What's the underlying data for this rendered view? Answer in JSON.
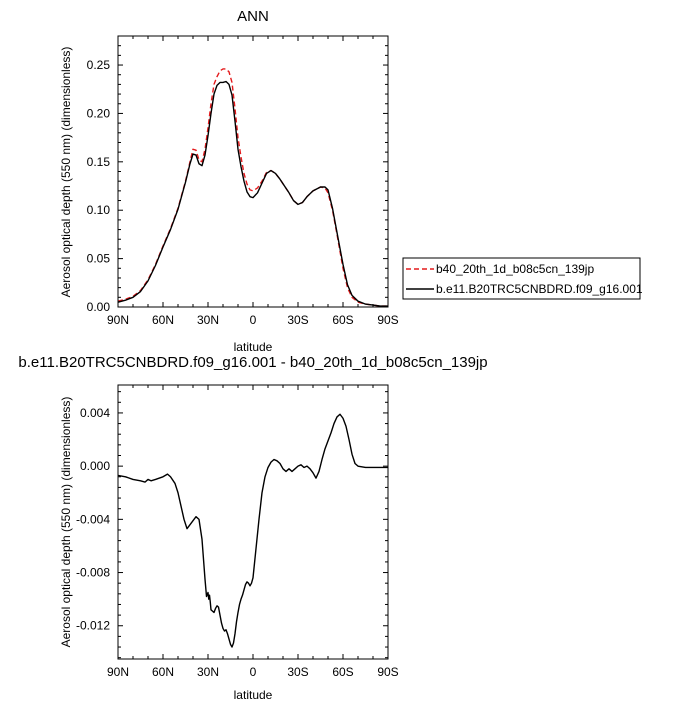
{
  "chart_data": [
    {
      "type": "line",
      "title": "ANN",
      "xlabel": "latitude",
      "ylabel": "Aerosol optical depth (550 nm) (dimensionless)",
      "xlim": [
        90,
        -90
      ],
      "ylim": [
        0,
        0.28
      ],
      "x_ticks": [
        90,
        60,
        30,
        0,
        -30,
        -60,
        -90
      ],
      "x_tick_labels": [
        "90N",
        "60N",
        "30N",
        "0",
        "30S",
        "60S",
        "90S"
      ],
      "y_ticks": [
        0,
        0.05,
        0.1,
        0.15,
        0.2,
        0.25
      ],
      "y_tick_labels": [
        "0.00",
        "0.05",
        "0.10",
        "0.15",
        "0.20",
        "0.25"
      ],
      "legend_position": "right",
      "series": [
        {
          "name": "b40_20th_1d_b08c5cn_139jp",
          "color": "#e41a1c",
          "style": "dashed",
          "x": [
            90,
            85,
            80,
            75,
            70,
            65,
            60,
            55,
            50,
            45,
            42,
            40,
            38,
            36,
            34,
            32,
            30,
            28,
            26,
            24,
            22,
            20,
            18,
            16,
            14,
            12,
            10,
            8,
            6,
            4,
            2,
            0,
            -3,
            -6,
            -9,
            -12,
            -15,
            -18,
            -21,
            -24,
            -27,
            -30,
            -33,
            -36,
            -40,
            -45,
            -48,
            -50,
            -53,
            -56,
            -60,
            -63,
            -66,
            -70,
            -75,
            -80,
            -85,
            -90
          ],
          "values": [
            0.006,
            0.008,
            0.011,
            0.017,
            0.028,
            0.044,
            0.063,
            0.081,
            0.102,
            0.13,
            0.15,
            0.163,
            0.162,
            0.152,
            0.15,
            0.163,
            0.185,
            0.21,
            0.23,
            0.238,
            0.244,
            0.246,
            0.246,
            0.243,
            0.232,
            0.205,
            0.175,
            0.155,
            0.138,
            0.127,
            0.121,
            0.12,
            0.123,
            0.13,
            0.139,
            0.141,
            0.138,
            0.132,
            0.125,
            0.118,
            0.11,
            0.106,
            0.108,
            0.114,
            0.12,
            0.124,
            0.123,
            0.118,
            0.1,
            0.075,
            0.04,
            0.02,
            0.01,
            0.005,
            0.003,
            0.002,
            0.001,
            0.001
          ]
        },
        {
          "name": "b.e11.B20TRC5CNBDRD.f09_g16.001",
          "color": "#000000",
          "style": "solid",
          "x": [
            90,
            85,
            80,
            75,
            70,
            65,
            60,
            55,
            50,
            45,
            42,
            40,
            38,
            36,
            34,
            32,
            30,
            28,
            26,
            24,
            22,
            20,
            18,
            16,
            14,
            12,
            10,
            8,
            6,
            4,
            2,
            0,
            -3,
            -6,
            -9,
            -12,
            -15,
            -18,
            -21,
            -24,
            -27,
            -30,
            -33,
            -36,
            -40,
            -45,
            -48,
            -50,
            -53,
            -56,
            -60,
            -63,
            -66,
            -70,
            -75,
            -80,
            -85,
            -90
          ],
          "values": [
            0.005,
            0.007,
            0.01,
            0.016,
            0.027,
            0.043,
            0.062,
            0.08,
            0.101,
            0.129,
            0.148,
            0.158,
            0.157,
            0.148,
            0.146,
            0.157,
            0.177,
            0.2,
            0.22,
            0.229,
            0.232,
            0.232,
            0.233,
            0.23,
            0.219,
            0.192,
            0.163,
            0.145,
            0.13,
            0.119,
            0.114,
            0.113,
            0.118,
            0.128,
            0.138,
            0.141,
            0.138,
            0.132,
            0.125,
            0.118,
            0.11,
            0.106,
            0.108,
            0.114,
            0.12,
            0.124,
            0.124,
            0.121,
            0.102,
            0.077,
            0.044,
            0.023,
            0.012,
            0.006,
            0.003,
            0.002,
            0.001,
            0.001
          ]
        }
      ]
    },
    {
      "type": "line",
      "title": "b.e11.B20TRC5CNBDRD.f09_g16.001 - b40_20th_1d_b08c5cn_139jp",
      "xlabel": "latitude",
      "ylabel": "Aerosol optical depth (550 nm) (dimensionless)",
      "xlim": [
        90,
        -90
      ],
      "ylim": [
        -0.0145,
        0.0061
      ],
      "x_ticks": [
        90,
        60,
        30,
        0,
        -30,
        -60,
        -90
      ],
      "x_tick_labels": [
        "90N",
        "60N",
        "30N",
        "0",
        "30S",
        "60S",
        "90S"
      ],
      "y_ticks": [
        0.004,
        0.0,
        -0.004,
        -0.008,
        -0.012
      ],
      "y_tick_labels": [
        "0.004",
        "0.000",
        "-0.004",
        "-0.008",
        "-0.012"
      ],
      "series": [
        {
          "color": "#000000",
          "style": "solid",
          "x": [
            90,
            85,
            80,
            75,
            72,
            70,
            68,
            65,
            60,
            57,
            55,
            52,
            50,
            48,
            46,
            44,
            42,
            40,
            38,
            36,
            34,
            33,
            32,
            31,
            30,
            29.5,
            29,
            28.5,
            28,
            27,
            26,
            25,
            24,
            23,
            22,
            21,
            20,
            19,
            18,
            17,
            16,
            15,
            14,
            13,
            12,
            11,
            10,
            9,
            8,
            7,
            6,
            5,
            4,
            3,
            2,
            1,
            0,
            -2,
            -4,
            -6,
            -8,
            -10,
            -12,
            -14,
            -16,
            -18,
            -20,
            -22,
            -24,
            -26,
            -28,
            -30,
            -32,
            -34,
            -36,
            -38,
            -40,
            -42,
            -44,
            -46,
            -48,
            -50,
            -52,
            -54,
            -56,
            -58,
            -60,
            -62,
            -64,
            -66,
            -68,
            -70,
            -75,
            -80,
            -85,
            -90
          ],
          "values": [
            -0.0007,
            -0.0008,
            -0.001,
            -0.0011,
            -0.0012,
            -0.001,
            -0.0011,
            -0.001,
            -0.0008,
            -0.0006,
            -0.0008,
            -0.0013,
            -0.002,
            -0.003,
            -0.004,
            -0.0047,
            -0.0044,
            -0.0041,
            -0.0038,
            -0.004,
            -0.0055,
            -0.007,
            -0.0085,
            -0.0098,
            -0.0095,
            -0.01,
            -0.0097,
            -0.0102,
            -0.0108,
            -0.0109,
            -0.011,
            -0.0107,
            -0.0105,
            -0.0106,
            -0.0112,
            -0.0118,
            -0.0122,
            -0.0124,
            -0.0123,
            -0.0126,
            -0.013,
            -0.0134,
            -0.0136,
            -0.0133,
            -0.0126,
            -0.0117,
            -0.011,
            -0.0104,
            -0.01,
            -0.0097,
            -0.0093,
            -0.0089,
            -0.0087,
            -0.0088,
            -0.009,
            -0.0088,
            -0.0084,
            -0.0062,
            -0.004,
            -0.002,
            -0.0008,
            -0.0001,
            0.0003,
            0.0005,
            0.0004,
            0.0002,
            -0.0002,
            -0.0004,
            -0.0002,
            -0.0004,
            -0.0002,
            0.0,
            0.0001,
            -0.0001,
            0.0,
            -0.0002,
            -0.0005,
            -0.0009,
            -0.0004,
            0.0005,
            0.0013,
            0.0019,
            0.0025,
            0.0032,
            0.0037,
            0.0039,
            0.0036,
            0.003,
            0.002,
            0.0009,
            0.0002,
            0.0,
            -0.0001,
            -0.0001,
            -0.0001,
            -0.0001
          ]
        }
      ]
    }
  ]
}
